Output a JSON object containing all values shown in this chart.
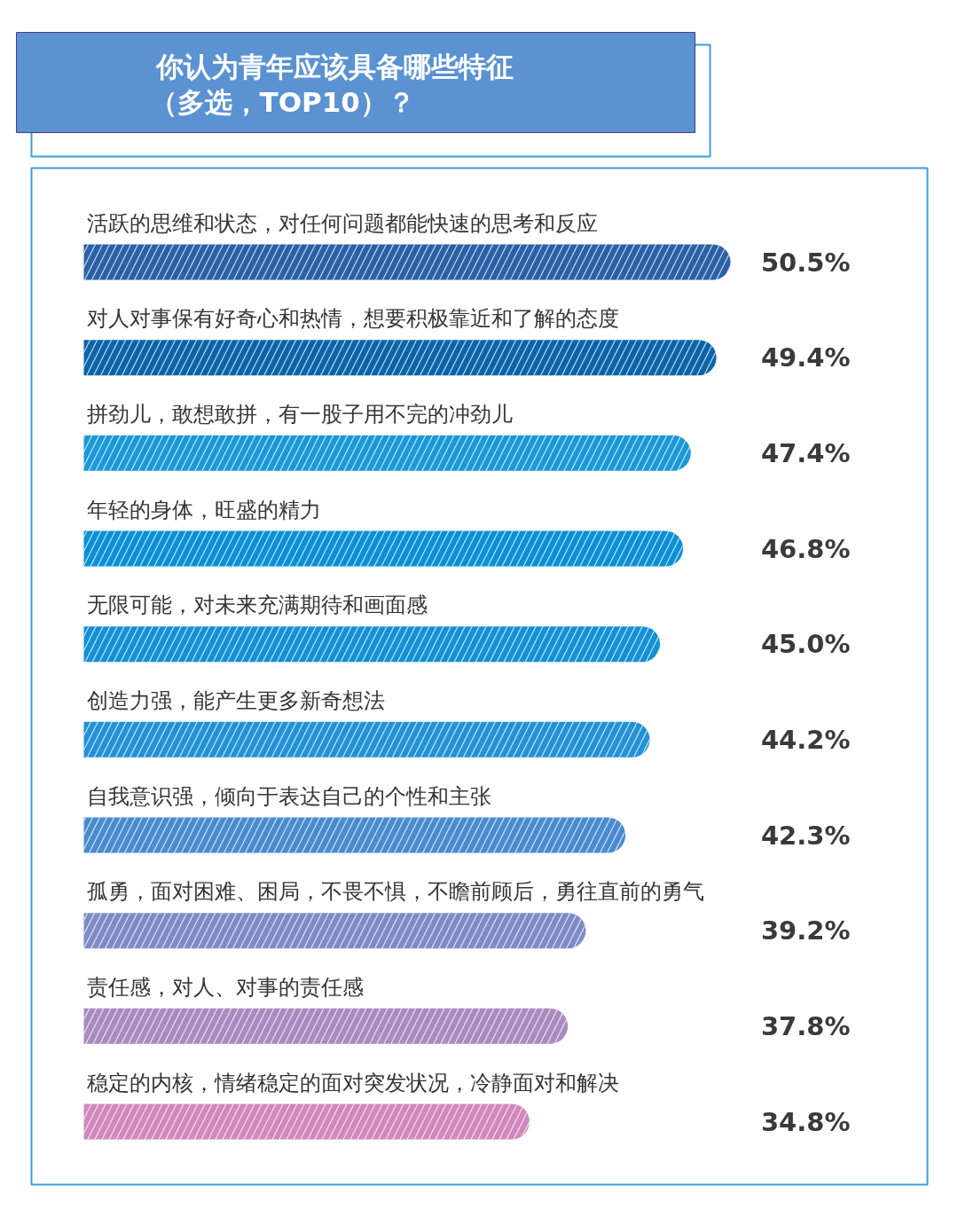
{
  "chart_data": {
    "type": "bar",
    "orientation": "horizontal",
    "title": "你认为青年应该具备哪些特征",
    "subtitle": "（多选，TOP10）？",
    "categories": [
      "活跃的思维和状态，对任何问题都能快速的思考和反应",
      "对人对事保有好奇心和热情，想要积极靠近和了解的态度",
      "拼劲儿，敢想敢拼，有一股子用不完的冲劲儿",
      "年轻的身体，旺盛的精力",
      "无限可能，对未来充满期待和画面感",
      "创造力强，能产生更多新奇想法",
      "自我意识强，倾向于表达自己的个性和主张",
      "孤勇，面对困难、困局，不畏不惧，不瞻前顾后，勇往直前的勇气",
      "责任感，对人、对事的责任感",
      "稳定的内核，情绪稳定的面对突发状况，冷静面对和解决"
    ],
    "values": [
      50.5,
      49.4,
      47.4,
      46.8,
      45.0,
      44.2,
      42.3,
      39.2,
      37.8,
      34.8
    ],
    "colors": [
      "#2a60a6",
      "#0c64a8",
      "#1a98d8",
      "#0b8fd6",
      "#1490d5",
      "#2391d6",
      "#4a8bcf",
      "#7f8bc6",
      "#a98bc0",
      "#d088bd"
    ],
    "value_labels": [
      "50.5%",
      "49.4%",
      "47.4%",
      "46.8%",
      "45.0%",
      "44.2%",
      "42.3%",
      "39.2%",
      "37.8%",
      "34.8%"
    ]
  }
}
